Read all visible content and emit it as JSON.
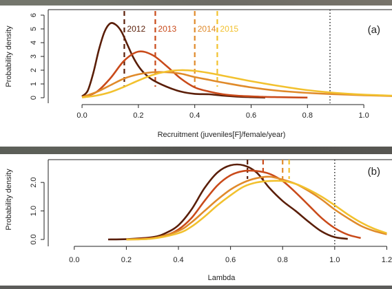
{
  "chart_data": [
    {
      "type": "line",
      "panel_label": "(a)",
      "xlabel": "Recruitment (juveniles[F]/female/year)",
      "ylabel": "Probability density",
      "xlim": [
        -0.12,
        1.1
      ],
      "ylim": [
        0,
        6
      ],
      "x_ticks": [
        "0.0",
        "0.2",
        "0.4",
        "0.6",
        "0.8",
        "1.0"
      ],
      "y_ticks": [
        "0",
        "1",
        "2",
        "3",
        "4",
        "5",
        "6"
      ],
      "reference_line": {
        "x": 0.88,
        "style": "dotted",
        "color": "#333333"
      },
      "series": [
        {
          "name": "2012",
          "color": "#5a1e08",
          "mean_line": 0.15,
          "x": [
            0.0,
            0.02,
            0.04,
            0.06,
            0.08,
            0.1,
            0.12,
            0.14,
            0.16,
            0.18,
            0.2,
            0.22,
            0.25,
            0.3,
            0.35,
            0.4,
            0.45,
            0.5,
            0.55,
            0.6,
            0.65
          ],
          "y": [
            0.1,
            0.5,
            1.8,
            3.5,
            4.8,
            5.4,
            5.3,
            4.8,
            3.9,
            3.0,
            2.3,
            1.8,
            1.3,
            0.8,
            0.45,
            0.28,
            0.25,
            0.15,
            0.08,
            0.04,
            0.01
          ]
        },
        {
          "name": "2013",
          "color": "#c94a1a",
          "mean_line": 0.26,
          "x": [
            0.0,
            0.05,
            0.1,
            0.15,
            0.2,
            0.25,
            0.3,
            0.35,
            0.4,
            0.45,
            0.5,
            0.55,
            0.6,
            0.65,
            0.7,
            0.75,
            0.8
          ],
          "y": [
            0.05,
            0.4,
            1.4,
            2.7,
            3.35,
            3.1,
            2.3,
            1.4,
            0.75,
            0.45,
            0.25,
            0.15,
            0.1,
            0.06,
            0.04,
            0.02,
            0.01
          ]
        },
        {
          "name": "2014",
          "color": "#e08a2a",
          "mean_line": 0.4,
          "x": [
            0.0,
            0.05,
            0.1,
            0.15,
            0.2,
            0.25,
            0.3,
            0.35,
            0.4,
            0.45,
            0.5,
            0.6,
            0.7,
            0.8,
            0.9,
            1.0,
            1.1
          ],
          "y": [
            0.05,
            0.4,
            0.9,
            1.4,
            1.7,
            1.85,
            1.85,
            1.75,
            1.5,
            1.3,
            1.1,
            0.75,
            0.5,
            0.35,
            0.25,
            0.18,
            0.12
          ]
        },
        {
          "name": "2015",
          "color": "#f2c12e",
          "mean_line": 0.48,
          "x": [
            0.0,
            0.05,
            0.1,
            0.15,
            0.2,
            0.25,
            0.3,
            0.35,
            0.4,
            0.45,
            0.5,
            0.55,
            0.6,
            0.7,
            0.8,
            0.9,
            1.0,
            1.1
          ],
          "y": [
            0.02,
            0.15,
            0.4,
            0.8,
            1.25,
            1.65,
            1.9,
            2.0,
            1.95,
            1.8,
            1.6,
            1.4,
            1.2,
            0.85,
            0.55,
            0.35,
            0.22,
            0.15
          ]
        }
      ]
    },
    {
      "type": "line",
      "panel_label": "(b)",
      "xlabel": "Lambda",
      "ylabel": "Probability density",
      "xlim": [
        -0.1,
        1.22
      ],
      "ylim": [
        0,
        2.8
      ],
      "x_ticks": [
        "0.0",
        "0.2",
        "0.4",
        "0.6",
        "0.8",
        "1.0",
        "1.2"
      ],
      "y_ticks": [
        "0.0",
        "1.0",
        "2.0"
      ],
      "reference_line": {
        "x": 1.0,
        "style": "dotted",
        "color": "#333333"
      },
      "series": [
        {
          "name": "2012",
          "color": "#5a1e08",
          "mean_line": 0.665,
          "x": [
            0.13,
            0.2,
            0.3,
            0.35,
            0.4,
            0.45,
            0.5,
            0.55,
            0.6,
            0.65,
            0.7,
            0.75,
            0.8,
            0.85,
            0.9,
            0.95,
            1.0,
            1.05
          ],
          "y": [
            0.0,
            0.01,
            0.08,
            0.22,
            0.5,
            1.05,
            1.8,
            2.35,
            2.6,
            2.6,
            2.35,
            1.8,
            1.35,
            1.0,
            0.62,
            0.28,
            0.08,
            0.02
          ]
        },
        {
          "name": "2013",
          "color": "#c94a1a",
          "mean_line": 0.725,
          "x": [
            0.2,
            0.3,
            0.35,
            0.4,
            0.45,
            0.5,
            0.55,
            0.6,
            0.65,
            0.7,
            0.75,
            0.8,
            0.85,
            0.9,
            0.95,
            1.0,
            1.05,
            1.1
          ],
          "y": [
            0.0,
            0.05,
            0.14,
            0.35,
            0.75,
            1.35,
            1.9,
            2.25,
            2.4,
            2.4,
            2.3,
            2.05,
            1.65,
            1.2,
            0.75,
            0.4,
            0.17,
            0.05
          ]
        },
        {
          "name": "2014",
          "color": "#e08a2a",
          "mean_line": 0.8,
          "x": [
            0.2,
            0.3,
            0.4,
            0.45,
            0.5,
            0.55,
            0.6,
            0.65,
            0.7,
            0.75,
            0.8,
            0.85,
            0.9,
            0.95,
            1.0,
            1.05,
            1.1,
            1.15,
            1.2
          ],
          "y": [
            0.0,
            0.04,
            0.3,
            0.6,
            1.0,
            1.4,
            1.75,
            2.0,
            2.15,
            2.2,
            2.1,
            1.95,
            1.7,
            1.4,
            1.05,
            0.75,
            0.48,
            0.3,
            0.18
          ]
        },
        {
          "name": "2015",
          "color": "#f2c12e",
          "mean_line": 0.825,
          "x": [
            0.2,
            0.3,
            0.4,
            0.45,
            0.5,
            0.55,
            0.6,
            0.65,
            0.7,
            0.75,
            0.8,
            0.85,
            0.9,
            0.95,
            1.0,
            1.05,
            1.1,
            1.15,
            1.2
          ],
          "y": [
            0.0,
            0.03,
            0.22,
            0.45,
            0.8,
            1.2,
            1.55,
            1.85,
            2.0,
            2.05,
            2.05,
            1.95,
            1.75,
            1.5,
            1.2,
            0.88,
            0.6,
            0.38,
            0.22
          ]
        }
      ]
    }
  ]
}
